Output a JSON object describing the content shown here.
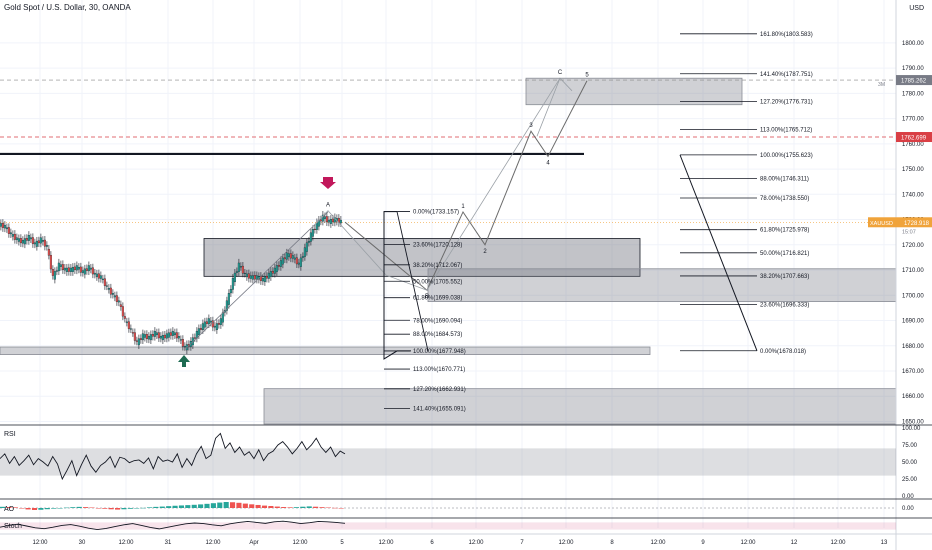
{
  "header": {
    "title": "Gold Spot / U.S. Dollar, 30, OANDA",
    "currency": "USD"
  },
  "colors": {
    "background": "#ffffff",
    "grid": "#f0f3fa",
    "text": "#131722",
    "candle_up": "#26a69a",
    "candle_down": "#ef5350",
    "wick": "#131722",
    "zone": "#787b86",
    "price_tag_red": "#d93f45",
    "price_tag_grey": "#787b86",
    "last_price_tag": "#f0a33a",
    "arrow_down": "#c2185b",
    "arrow_up": "#1e6b52",
    "fib_line": "#131722",
    "wave_line": "#6b6b6b"
  },
  "chart_data": [
    {
      "type": "candlestick",
      "symbol": "XAUUSD",
      "title": "Gold Spot / U.S. Dollar, 30, OANDA",
      "ylabel": "USD",
      "ylim": [
        1649,
        1815
      ],
      "y_ticks": [
        1650,
        1660,
        1670,
        1680,
        1690,
        1700,
        1710,
        1720,
        1730,
        1740,
        1750,
        1760,
        1770,
        1780,
        1790,
        1800
      ],
      "x_tick_labels": [
        "12:00",
        "30",
        "12:00",
        "31",
        "12:00",
        "Apr",
        "12:00",
        "5",
        "12:00",
        "6",
        "12:00",
        "7",
        "12:00",
        "8",
        "12:00",
        "9",
        "12:00",
        "12",
        "12:00",
        "13"
      ],
      "close_path": [
        {
          "x": 0,
          "y": 1728
        },
        {
          "x": 6,
          "y": 1727
        },
        {
          "x": 12,
          "y": 1724
        },
        {
          "x": 18,
          "y": 1722
        },
        {
          "x": 24,
          "y": 1721
        },
        {
          "x": 30,
          "y": 1723
        },
        {
          "x": 36,
          "y": 1720
        },
        {
          "x": 42,
          "y": 1722
        },
        {
          "x": 48,
          "y": 1719
        },
        {
          "x": 54,
          "y": 1707
        },
        {
          "x": 60,
          "y": 1712
        },
        {
          "x": 66,
          "y": 1710
        },
        {
          "x": 72,
          "y": 1710
        },
        {
          "x": 78,
          "y": 1711
        },
        {
          "x": 84,
          "y": 1709
        },
        {
          "x": 90,
          "y": 1711
        },
        {
          "x": 96,
          "y": 1708
        },
        {
          "x": 102,
          "y": 1707
        },
        {
          "x": 108,
          "y": 1703
        },
        {
          "x": 114,
          "y": 1700
        },
        {
          "x": 120,
          "y": 1697
        },
        {
          "x": 126,
          "y": 1690
        },
        {
          "x": 132,
          "y": 1686
        },
        {
          "x": 138,
          "y": 1681
        },
        {
          "x": 144,
          "y": 1684
        },
        {
          "x": 150,
          "y": 1683
        },
        {
          "x": 156,
          "y": 1685
        },
        {
          "x": 162,
          "y": 1683
        },
        {
          "x": 168,
          "y": 1684
        },
        {
          "x": 174,
          "y": 1685
        },
        {
          "x": 180,
          "y": 1683
        },
        {
          "x": 186,
          "y": 1679
        },
        {
          "x": 192,
          "y": 1681
        },
        {
          "x": 198,
          "y": 1685
        },
        {
          "x": 204,
          "y": 1688
        },
        {
          "x": 210,
          "y": 1690
        },
        {
          "x": 216,
          "y": 1687
        },
        {
          "x": 222,
          "y": 1690
        },
        {
          "x": 228,
          "y": 1697
        },
        {
          "x": 234,
          "y": 1706
        },
        {
          "x": 240,
          "y": 1712
        },
        {
          "x": 246,
          "y": 1708
        },
        {
          "x": 252,
          "y": 1707
        },
        {
          "x": 258,
          "y": 1707
        },
        {
          "x": 264,
          "y": 1706
        },
        {
          "x": 270,
          "y": 1708
        },
        {
          "x": 276,
          "y": 1710
        },
        {
          "x": 282,
          "y": 1713
        },
        {
          "x": 288,
          "y": 1716
        },
        {
          "x": 294,
          "y": 1715
        },
        {
          "x": 300,
          "y": 1712
        },
        {
          "x": 306,
          "y": 1718
        },
        {
          "x": 312,
          "y": 1724
        },
        {
          "x": 318,
          "y": 1728
        },
        {
          "x": 324,
          "y": 1731
        },
        {
          "x": 330,
          "y": 1729
        },
        {
          "x": 336,
          "y": 1730
        },
        {
          "x": 342,
          "y": 1729
        }
      ],
      "left_fib": {
        "levels": [
          {
            "label": "0.00%(1733.157)",
            "price": 1733.157
          },
          {
            "label": "23.60%(1720.128)",
            "price": 1720.128
          },
          {
            "label": "38.20%(1712.067)",
            "price": 1712.067
          },
          {
            "label": "50.00%(1705.552)",
            "price": 1705.552
          },
          {
            "label": "61.80%(1699.038)",
            "price": 1699.038
          },
          {
            "label": "78.00%(1690.094)",
            "price": 1690.094
          },
          {
            "label": "88.00%(1684.573)",
            "price": 1684.573
          },
          {
            "label": "100.00%(1677.948)",
            "price": 1677.948
          },
          {
            "label": "113.00%(1670.771)",
            "price": 1670.771
          },
          {
            "label": "127.20%(1662.931)",
            "price": 1662.931
          },
          {
            "label": "141.40%(1655.091)",
            "price": 1655.091
          }
        ]
      },
      "right_fib": {
        "levels": [
          {
            "label": "161.80%(1803.583)",
            "price": 1803.583
          },
          {
            "label": "141.40%(1787.751)",
            "price": 1787.751
          },
          {
            "label": "127.20%(1776.731)",
            "price": 1776.731
          },
          {
            "label": "113.00%(1765.712)",
            "price": 1765.712
          },
          {
            "label": "100.00%(1755.623)",
            "price": 1755.623
          },
          {
            "label": "88.00%(1746.311)",
            "price": 1746.311
          },
          {
            "label": "78.00%(1738.550)",
            "price": 1738.55
          },
          {
            "label": "61.80%(1725.978)",
            "price": 1725.978
          },
          {
            "label": "50.00%(1716.821)",
            "price": 1716.821
          },
          {
            "label": "38.20%(1707.663)",
            "price": 1707.663
          },
          {
            "label": "23.60%(1696.333)",
            "price": 1696.333
          },
          {
            "label": "0.00%(1678.018)",
            "price": 1678.018
          }
        ]
      },
      "zones": [
        {
          "from": 1707.5,
          "to": 1722.5
        },
        {
          "from": 1676.5,
          "to": 1679.5
        },
        {
          "from": 1649,
          "to": 1663
        },
        {
          "from": 1697.5,
          "to": 1710.5
        },
        {
          "from": 1775.5,
          "to": 1786
        }
      ],
      "horizontal_levels": [
        {
          "price": 1785.262,
          "label": "1785.262",
          "style": "dashed",
          "tag": "grey"
        },
        {
          "price": 1762.699,
          "label": "1762.699",
          "style": "dashed",
          "tag": "red"
        },
        {
          "price": 1756,
          "style": "solid-thick"
        },
        {
          "price": 1728.918,
          "style": "dotted",
          "tag": "orange"
        }
      ],
      "last_price": {
        "symbol": "XAUUSD",
        "value": "1728.918",
        "countdown": "15:07"
      },
      "time_label_right": "3M",
      "wave_points": [
        {
          "label": "A",
          "x": 328,
          "price": 1733.5
        },
        {
          "label": "1",
          "x": 463,
          "price": 1733
        },
        {
          "label": "2",
          "x": 485,
          "price": 1720
        },
        {
          "label": "3",
          "x": 531,
          "price": 1765
        },
        {
          "label": "4",
          "x": 548,
          "price": 1755
        },
        {
          "label": "5",
          "x": 587,
          "price": 1785
        },
        {
          "label": "C",
          "x": 560,
          "price": 1786
        },
        {
          "label": "B",
          "x": 427,
          "price": 1702
        }
      ]
    },
    {
      "type": "line",
      "title": "RSI",
      "ylim": [
        0,
        100
      ],
      "y_ticks": [
        0,
        25,
        50,
        75,
        100
      ],
      "band": [
        30,
        70
      ],
      "values": [
        55,
        62,
        48,
        58,
        45,
        52,
        60,
        46,
        55,
        50,
        44,
        58,
        47,
        25,
        38,
        52,
        30,
        46,
        60,
        44,
        35,
        45,
        50,
        58,
        42,
        57,
        55,
        49,
        52,
        53,
        48,
        56,
        40,
        58,
        51,
        53,
        50,
        62,
        42,
        55,
        45,
        62,
        73,
        55,
        60,
        85,
        92,
        70,
        78,
        64,
        72,
        60,
        65,
        55,
        68,
        52,
        62,
        66,
        75,
        80,
        72,
        62,
        70,
        80,
        68,
        75,
        85,
        72,
        64,
        72,
        58,
        66,
        62
      ]
    },
    {
      "type": "bar",
      "title": "AO",
      "y_ticks": [
        "0.00"
      ],
      "values": [
        1.5,
        1.2,
        0.8,
        -0.5,
        -1.8,
        -2.5,
        -2.2,
        -1.5,
        -0.8,
        -0.3,
        0.5,
        1.0,
        1.4,
        1.1,
        0.6,
        -0.2,
        -0.9,
        -1.6,
        -2.0,
        -1.6,
        -1.0,
        -0.5,
        0.2,
        0.8,
        1.4,
        1.8,
        2.3,
        2.8,
        3.2,
        3.6,
        4.0,
        4.5,
        5.2,
        6.0,
        6.8,
        7.5,
        7.2,
        6.5,
        5.5,
        4.6,
        3.8,
        3.0,
        2.5,
        1.8,
        1.2,
        0.8,
        1.0,
        1.6,
        2.0,
        1.6,
        1.0,
        0.6,
        0.2,
        -0.2
      ]
    },
    {
      "type": "line",
      "title": "Stoch",
      "ylim": [
        0,
        100
      ],
      "band": [
        20,
        80
      ],
      "values": [
        40,
        55,
        65,
        50,
        35,
        28,
        40,
        55,
        62,
        48,
        32,
        20,
        30,
        45,
        60,
        70,
        55,
        38,
        26,
        40,
        55,
        68,
        75,
        70,
        60,
        52,
        68,
        80,
        88,
        80,
        72,
        85,
        90,
        82,
        70,
        78,
        88,
        85,
        80,
        72
      ]
    }
  ]
}
